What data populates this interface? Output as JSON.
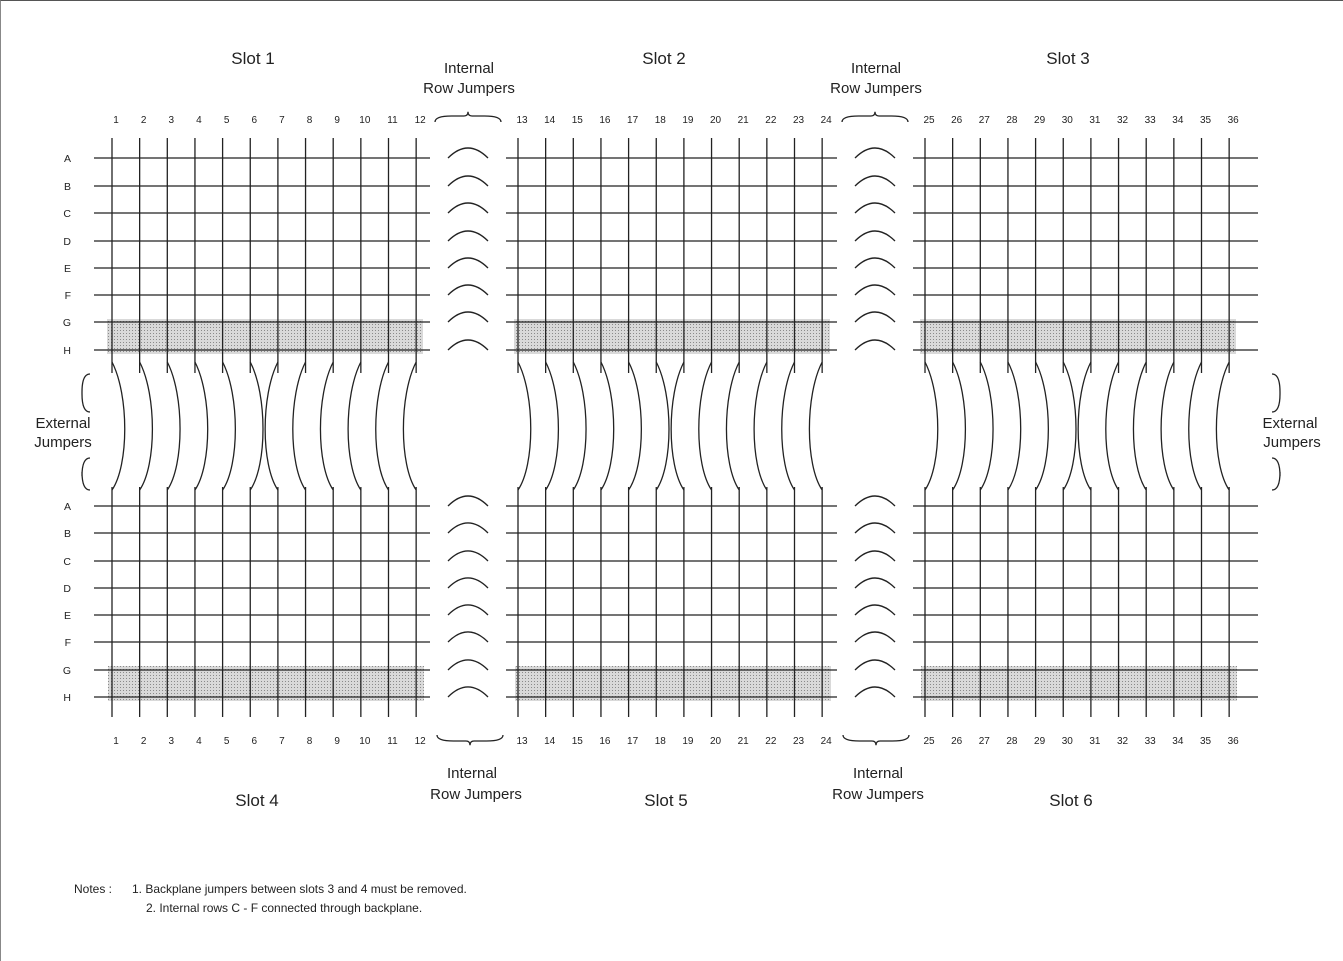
{
  "slots": [
    "Slot 1",
    "Slot 2",
    "Slot 3",
    "Slot 4",
    "Slot 5",
    "Slot 6"
  ],
  "internal_label": [
    "Internal",
    "Row Jumpers"
  ],
  "external_label": [
    "External",
    "Jumpers"
  ],
  "row_labels": [
    "A",
    "B",
    "C",
    "D",
    "E",
    "F",
    "G",
    "H"
  ],
  "columns": [
    "1",
    "2",
    "3",
    "4",
    "5",
    "6",
    "7",
    "8",
    "9",
    "10",
    "11",
    "12",
    "13",
    "14",
    "15",
    "16",
    "17",
    "18",
    "19",
    "20",
    "21",
    "22",
    "23",
    "24",
    "25",
    "26",
    "27",
    "28",
    "29",
    "30",
    "31",
    "32",
    "33",
    "34",
    "35",
    "36"
  ],
  "notes": {
    "prefix": "Notes :",
    "lines": [
      "1. Backplane jumpers between slots 3 and 4 must be removed.",
      "2. Internal rows C - F connected through backplane."
    ]
  },
  "colors": {
    "line": "#222222",
    "shade": "#cfcfcf"
  }
}
